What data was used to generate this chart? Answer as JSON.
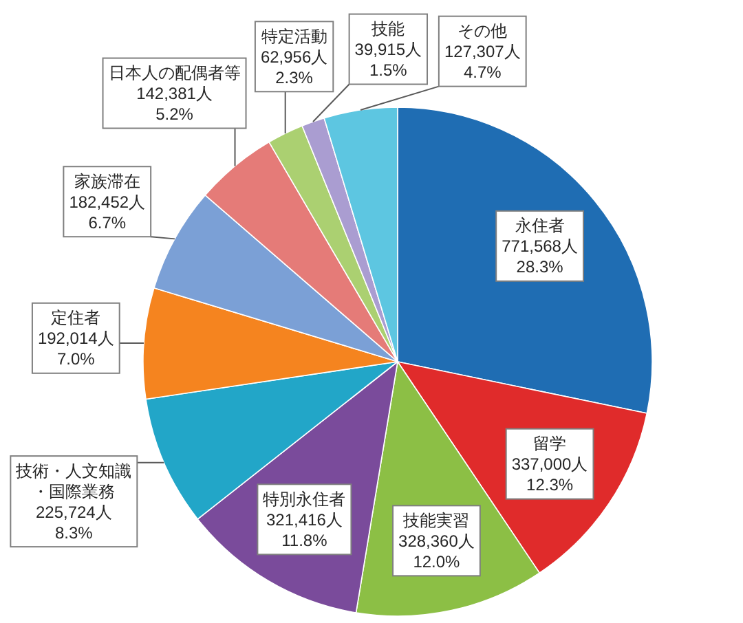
{
  "chart_data": {
    "type": "pie",
    "categories": [
      "永住者",
      "留学",
      "技能実習",
      "特別永住者",
      "技術・人文知識・国際業務",
      "定住者",
      "家族滞在",
      "日本人の配偶者等",
      "特定活動",
      "技能",
      "その他"
    ],
    "values": [
      771568,
      337000,
      328360,
      321416,
      225724,
      192014,
      182452,
      142381,
      62956,
      39915,
      127307
    ],
    "colors": [
      "#1f6db3",
      "#e02b2b",
      "#8cbf45",
      "#7a4b9b",
      "#22a6c8",
      "#f5841f",
      "#7ba0d6",
      "#e57b78",
      "#abd071",
      "#aa9dd1",
      "#5dc6e1"
    ],
    "value_labels": [
      "771,568人\n28.3%",
      "337,000人\n12.3%",
      "328,360人\n12.0%",
      "321,416人\n11.8%",
      "225,724人\n8.3%",
      "192,014人\n7.0%",
      "182,452人\n6.7%",
      "142,381人\n5.2%",
      "62,956人\n2.3%",
      "39,915人\n1.5%",
      "127,307人\n4.7%"
    ]
  }
}
